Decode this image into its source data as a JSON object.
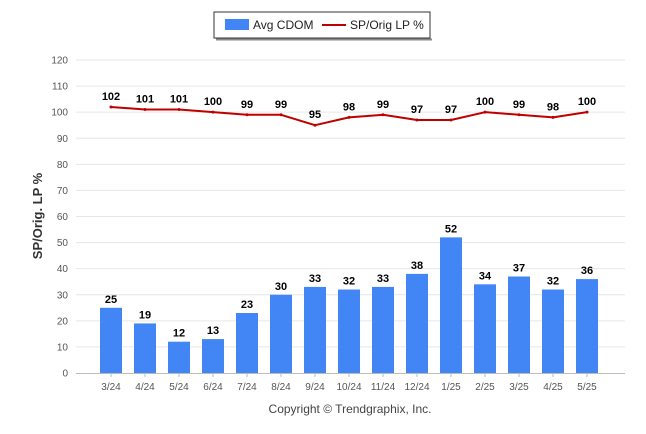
{
  "chart_data": {
    "type": "bar",
    "categories": [
      "3/24",
      "4/24",
      "5/24",
      "6/24",
      "7/24",
      "8/24",
      "9/24",
      "10/24",
      "11/24",
      "12/24",
      "1/25",
      "2/25",
      "3/25",
      "4/25",
      "5/25"
    ],
    "series": [
      {
        "name": "Avg CDOM",
        "type": "bar",
        "color": "#4285f4",
        "values": [
          25,
          19,
          12,
          13,
          23,
          30,
          33,
          32,
          33,
          38,
          52,
          34,
          37,
          32,
          36
        ]
      },
      {
        "name": "SP/Orig LP %",
        "type": "line",
        "color": "#c00000",
        "values": [
          102,
          101,
          101,
          100,
          99,
          99,
          95,
          98,
          99,
          97,
          97,
          100,
          99,
          98,
          100
        ]
      }
    ],
    "ylabel": "SP/Orig. LP %",
    "xlabel": "",
    "ylim": [
      0,
      120
    ],
    "yticks": [
      0,
      10,
      20,
      30,
      40,
      50,
      60,
      70,
      80,
      90,
      100,
      110,
      120
    ],
    "grid": true,
    "legend_position": "top-center"
  },
  "footer": {
    "copyright": "Copyright © Trendgraphix, Inc."
  }
}
